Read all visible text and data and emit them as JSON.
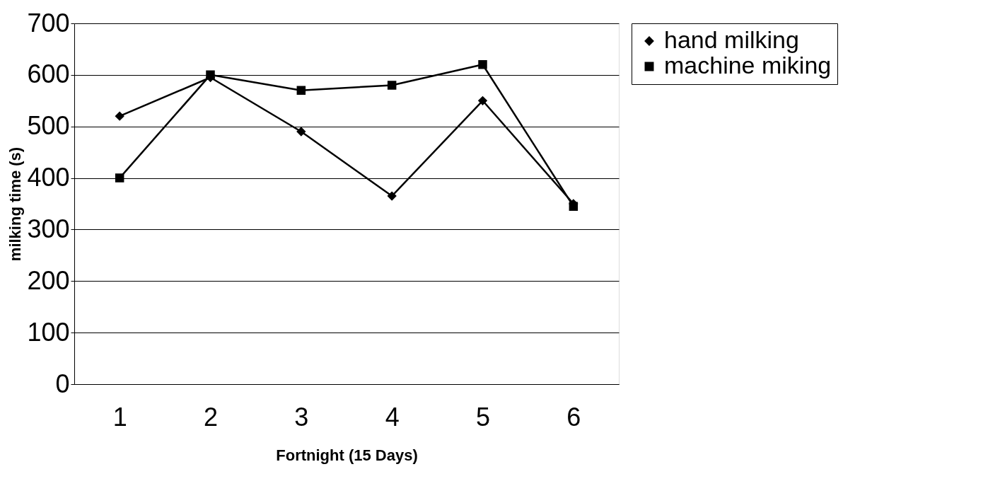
{
  "chart_data": {
    "type": "line",
    "xlabel": "Fortnight (15 Days)",
    "ylabel": "milking time (s)",
    "categories": [
      "1",
      "2",
      "3",
      "4",
      "5",
      "6"
    ],
    "series": [
      {
        "name": "hand milking",
        "color": "#000000",
        "marker": "diamond",
        "values": [
          520,
          595,
          490,
          365,
          550,
          350
        ]
      },
      {
        "name": "machine miking",
        "color": "#000000",
        "marker": "square",
        "values": [
          400,
          600,
          570,
          580,
          620,
          345
        ]
      }
    ],
    "ylim": [
      0,
      700
    ],
    "yticks": [
      0,
      100,
      200,
      300,
      400,
      500,
      600,
      700
    ],
    "grid": "y",
    "legend": "right",
    "line_style": "solid"
  }
}
